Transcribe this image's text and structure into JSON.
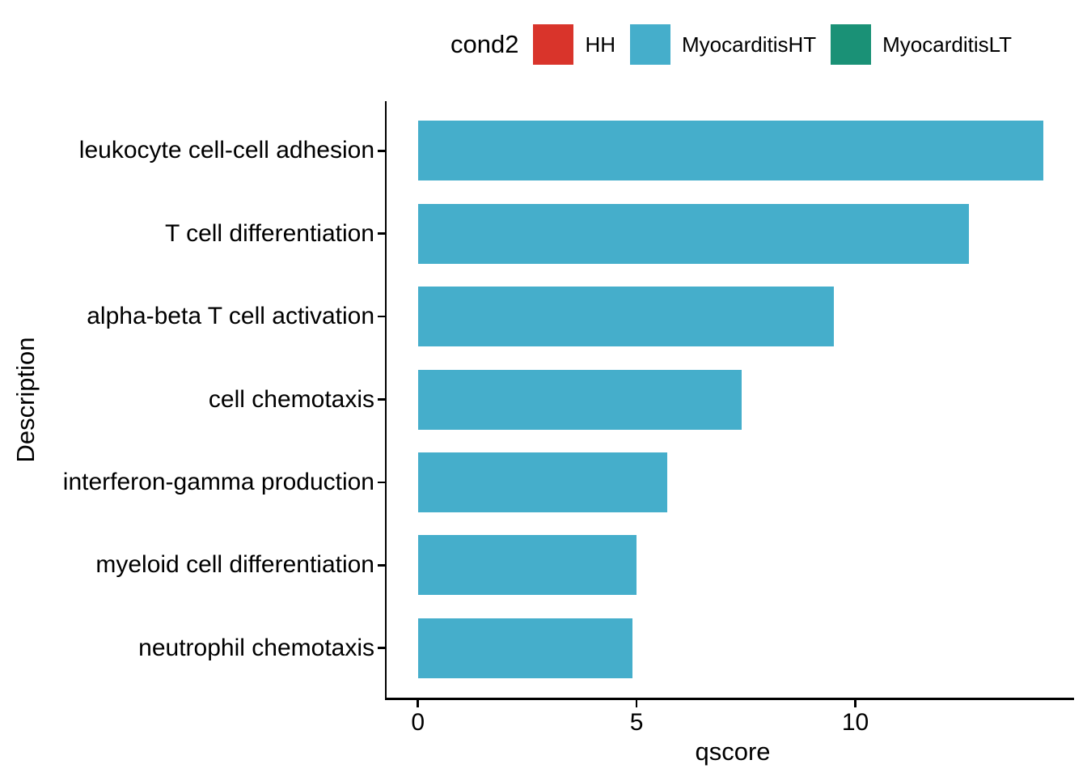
{
  "chart_data": {
    "type": "bar",
    "orientation": "horizontal",
    "title": "",
    "xlabel": "qscore",
    "ylabel": "Description",
    "categories": [
      "leukocyte cell-cell adhesion",
      "T cell differentiation",
      "alpha-beta T cell activation",
      "cell chemotaxis",
      "interferon-gamma production",
      "myeloid cell differentiation",
      "neutrophil chemotaxis"
    ],
    "values": [
      14.3,
      12.6,
      9.5,
      7.4,
      5.7,
      5.0,
      4.9
    ],
    "series_name": "MyocarditisHT",
    "bar_color": "#45AECB",
    "xlim": [
      0,
      15
    ],
    "xticks": [
      "0",
      "5",
      "10"
    ],
    "xtick_values": [
      0,
      5,
      10
    ],
    "grid": false,
    "legend": {
      "title": "cond2",
      "position": "top",
      "entries": [
        {
          "label": "HH",
          "color": "#D9342B"
        },
        {
          "label": "MyocarditisHT",
          "color": "#45AECB"
        },
        {
          "label": "MyocarditisLT",
          "color": "#1A9176"
        }
      ]
    },
    "colors": {
      "axis": "#000000",
      "text": "#000000",
      "background": "#FFFFFF"
    }
  }
}
